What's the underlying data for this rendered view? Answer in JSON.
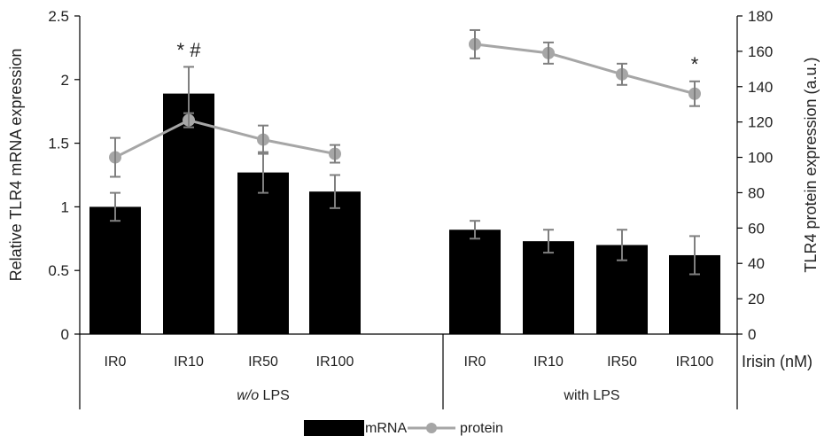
{
  "chart_data": {
    "type": "bar",
    "categories": [
      "IR0",
      "IR10",
      "IR50",
      "IR100",
      "IR0",
      "IR10",
      "IR50",
      "IR100"
    ],
    "groups": [
      {
        "label": "w/o LPS",
        "italic_part": "w/o",
        "rest": " LPS",
        "indices": [
          0,
          1,
          2,
          3
        ]
      },
      {
        "label": "with LPS",
        "indices": [
          4,
          5,
          6,
          7
        ]
      }
    ],
    "x_axis_title": "Irisin (nM)",
    "y_left": {
      "label": "Relative TLR4 mRNA expression",
      "min": 0,
      "max": 2.5,
      "ticks": [
        0,
        0.5,
        1,
        1.5,
        2,
        2.5
      ],
      "tick_labels": [
        "0",
        "0.5",
        "1",
        "1.5",
        "2",
        "2.5"
      ]
    },
    "y_right": {
      "label": "TLR4 protein expression (a.u.)",
      "min": 0,
      "max": 180,
      "ticks": [
        0,
        20,
        40,
        60,
        80,
        100,
        120,
        140,
        160,
        180
      ],
      "tick_labels": [
        "0",
        "20",
        "40",
        "60",
        "80",
        "100",
        "120",
        "140",
        "160",
        "180"
      ]
    },
    "series": [
      {
        "name": "mRNA",
        "kind": "bar",
        "axis": "left",
        "color": "#000000",
        "values": [
          1.0,
          1.89,
          1.27,
          1.12,
          0.82,
          0.73,
          0.7,
          0.62
        ],
        "errors": [
          0.11,
          0.21,
          0.16,
          0.13,
          0.07,
          0.09,
          0.12,
          0.15
        ]
      },
      {
        "name": "protein",
        "kind": "line",
        "axis": "right",
        "color": "#a6a6a6",
        "segments": [
          [
            0,
            1,
            2,
            3
          ],
          [
            4,
            5,
            6,
            7
          ]
        ],
        "values": [
          100,
          121,
          110,
          102,
          164,
          159,
          147,
          136
        ],
        "errors": [
          11,
          4,
          8,
          5,
          8,
          6,
          6,
          7
        ]
      }
    ],
    "annotations": [
      {
        "text": "* #",
        "index": 1,
        "axis": "left",
        "value": 2.18
      },
      {
        "text": "*",
        "index": 7,
        "axis": "right",
        "value": 149
      }
    ],
    "legend": {
      "position": "bottom",
      "items": [
        "mRNA",
        "protein"
      ]
    },
    "grid": false
  }
}
